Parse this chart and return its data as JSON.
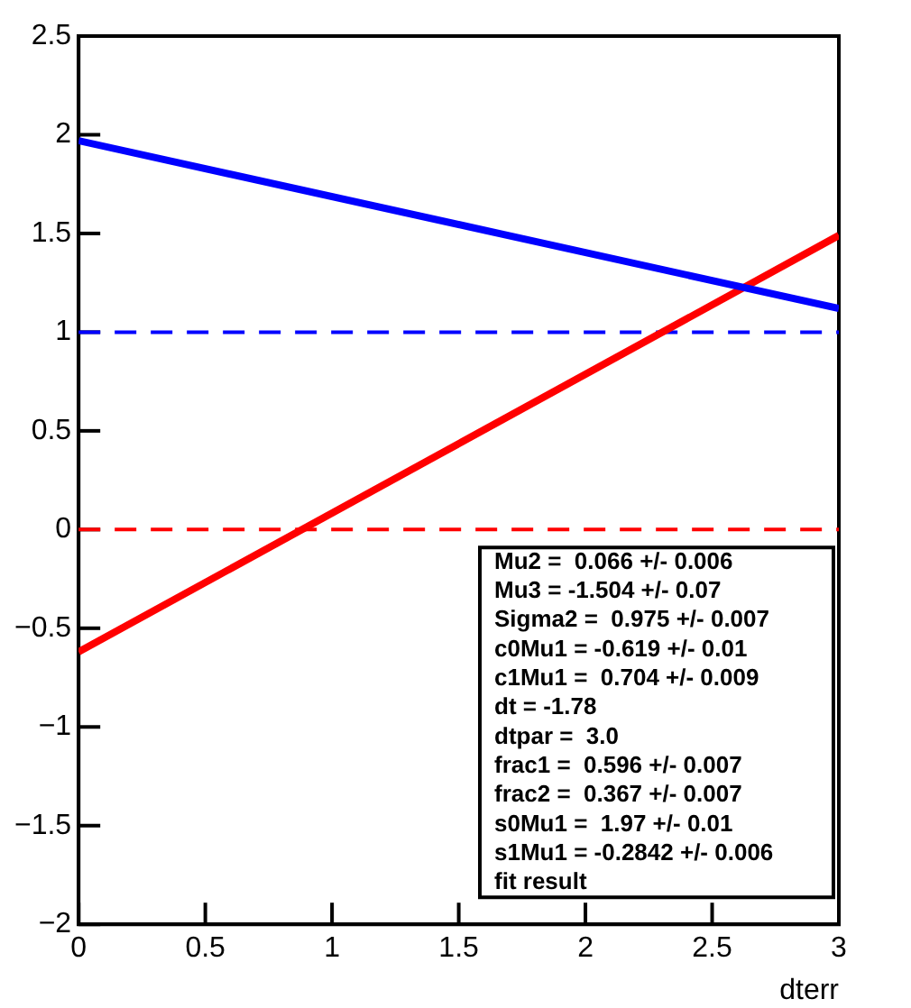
{
  "chart_data": {
    "type": "line",
    "xlabel": "dterr",
    "x": [
      0,
      3
    ],
    "series": [
      {
        "color": "#0000ff",
        "values": [
          1.97,
          1.12
        ]
      },
      {
        "color": "#ff0000",
        "values": [
          -0.62,
          1.49
        ]
      }
    ],
    "xlim": [
      0,
      3
    ],
    "xticks": [
      0,
      0.5,
      1,
      1.5,
      2,
      2.5,
      3
    ],
    "ylim": [
      -2,
      2.5
    ],
    "yticks": [
      -2,
      -1.5,
      -1,
      -0.5,
      0,
      0.5,
      1,
      1.5,
      2,
      2.5
    ],
    "ref_lines": [
      {
        "axis": "y",
        "value": 1,
        "color": "#0000ff",
        "line_style": "dashed"
      },
      {
        "axis": "y",
        "value": 0,
        "color": "#ff0000",
        "line_style": "dashed"
      }
    ],
    "annotations": [
      "Mu2 =  0.066 +/- 0.006",
      "Mu3 = -1.504 +/- 0.07",
      "Sigma2 =  0.975 +/- 0.007",
      "c0Mu1 = -0.619 +/- 0.01",
      "c1Mu1 =  0.704 +/- 0.009",
      "dt = -1.78",
      "dtpar =  3.0",
      "frac1 =  0.596 +/- 0.007",
      "frac2 =  0.367 +/- 0.007",
      "s0Mu1 =  1.97 +/- 0.01",
      "s1Mu1 = -0.2842 +/- 0.006",
      "fit result"
    ],
    "grid": false,
    "legend": false,
    "marker": "none",
    "line_style": "solid"
  }
}
